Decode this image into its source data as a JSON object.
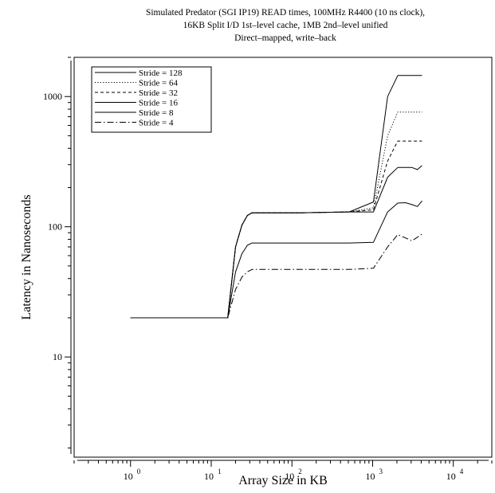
{
  "chart_data": {
    "type": "line",
    "title_lines": [
      "Simulated Predator (SGI IP19) READ times, 100MHz R4400 (10 ns clock),",
      "16KB Split I/D 1st–level cache, 1MB 2nd–level unified",
      "Direct–mapped, write–back"
    ],
    "xlabel": "Array Size in KB",
    "ylabel": "Latency in Nanoseconds",
    "x_scale": "log10",
    "y_scale": "log10",
    "xlim": [
      0.2,
      30000
    ],
    "ylim": [
      1.7,
      2000
    ],
    "x_ticks": [
      {
        "value": 1,
        "base": "10",
        "exp": "0"
      },
      {
        "value": 10,
        "base": "10",
        "exp": "1"
      },
      {
        "value": 100,
        "base": "10",
        "exp": "2"
      },
      {
        "value": 1000,
        "base": "10",
        "exp": "3"
      },
      {
        "value": 10000,
        "base": "10",
        "exp": "4"
      }
    ],
    "y_ticks": [
      {
        "value": 10,
        "label": "10"
      },
      {
        "value": 100,
        "label": "100"
      },
      {
        "value": 1000,
        "label": "1000"
      }
    ],
    "grid": false,
    "legend_position": "top-left",
    "series": [
      {
        "name": "Stride = 128",
        "dash": "solid",
        "x": [
          1,
          2,
          4,
          8,
          16,
          20,
          24,
          28,
          32,
          64,
          128,
          256,
          512,
          1024,
          1536,
          2048,
          3072,
          4096
        ],
        "y": [
          20,
          20,
          20,
          20,
          20,
          70,
          103,
          122,
          128,
          128,
          128,
          129,
          130,
          155,
          1000,
          1450,
          1450,
          1450
        ]
      },
      {
        "name": "Stride = 64",
        "dash": "dotted",
        "x": [
          1,
          2,
          4,
          8,
          16,
          20,
          24,
          28,
          32,
          64,
          128,
          256,
          512,
          1024,
          1536,
          2048,
          3072,
          4096
        ],
        "y": [
          20,
          20,
          20,
          20,
          20,
          70,
          103,
          122,
          128,
          128,
          128,
          129,
          130,
          140,
          500,
          760,
          760,
          760
        ]
      },
      {
        "name": "Stride = 32",
        "dash": "dashed",
        "x": [
          1,
          2,
          4,
          8,
          16,
          20,
          24,
          28,
          32,
          64,
          128,
          256,
          512,
          1024,
          1536,
          2048,
          3072,
          4096
        ],
        "y": [
          20,
          20,
          20,
          20,
          20,
          70,
          103,
          122,
          128,
          128,
          128,
          129,
          130,
          135,
          320,
          455,
          455,
          455
        ]
      },
      {
        "name": "Stride = 16",
        "dash": "solid",
        "x": [
          1,
          2,
          4,
          8,
          16,
          20,
          24,
          28,
          32,
          64,
          128,
          256,
          512,
          1024,
          1536,
          2048,
          3072,
          3584,
          4096
        ],
        "y": [
          20,
          20,
          20,
          20,
          20,
          70,
          103,
          122,
          128,
          128,
          128,
          129,
          130,
          130,
          240,
          285,
          285,
          275,
          295
        ]
      },
      {
        "name": "Stride = 8",
        "dash": "solid",
        "x": [
          1,
          2,
          4,
          8,
          16,
          20,
          24,
          28,
          32,
          64,
          128,
          256,
          512,
          1024,
          1536,
          2048,
          2560,
          3072,
          3584,
          4096
        ],
        "y": [
          20,
          20,
          20,
          20,
          20,
          45,
          62,
          72,
          75,
          75,
          75,
          75,
          75,
          76,
          130,
          152,
          153,
          148,
          143,
          158
        ]
      },
      {
        "name": "Stride = 4",
        "dash": "dashdot",
        "x": [
          1,
          2,
          4,
          8,
          16,
          20,
          24,
          28,
          32,
          64,
          128,
          256,
          512,
          1024,
          1536,
          2048,
          2560,
          3072,
          3584,
          4096
        ],
        "y": [
          20,
          20,
          20,
          20,
          20,
          33,
          41,
          45,
          47,
          47,
          47,
          47,
          47,
          48,
          70,
          87,
          82,
          78,
          83,
          88
        ]
      }
    ]
  }
}
